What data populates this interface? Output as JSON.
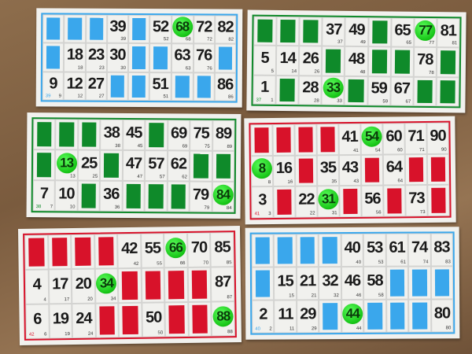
{
  "cards": [
    {
      "color": "#3aa7ec",
      "corner": "39",
      "rows": [
        [
          null,
          null,
          null,
          39,
          null,
          52,
          68,
          72,
          82
        ],
        [
          null,
          18,
          23,
          30,
          null,
          null,
          63,
          76,
          null
        ],
        [
          9,
          12,
          27,
          null,
          null,
          51,
          null,
          null,
          86
        ]
      ],
      "marked": [
        68
      ]
    },
    {
      "color": "#0f8a2a",
      "corner": "37",
      "rows": [
        [
          null,
          null,
          null,
          37,
          49,
          null,
          65,
          77,
          81
        ],
        [
          5,
          14,
          26,
          null,
          48,
          null,
          null,
          78,
          null
        ],
        [
          1,
          null,
          28,
          33,
          null,
          59,
          67,
          null,
          null
        ]
      ],
      "marked": [
        77,
        33
      ]
    },
    {
      "color": "#0f8a2a",
      "corner": "38",
      "rows": [
        [
          null,
          null,
          null,
          38,
          45,
          null,
          69,
          75,
          89
        ],
        [
          null,
          13,
          25,
          null,
          47,
          57,
          62,
          null,
          null
        ],
        [
          7,
          10,
          null,
          36,
          null,
          null,
          null,
          79,
          84
        ]
      ],
      "marked": [
        13,
        84
      ]
    },
    {
      "color": "#d8122a",
      "corner": "41",
      "rows": [
        [
          null,
          null,
          null,
          null,
          41,
          54,
          60,
          71,
          90
        ],
        [
          8,
          16,
          null,
          35,
          43,
          null,
          64,
          null,
          null
        ],
        [
          3,
          null,
          22,
          31,
          null,
          56,
          null,
          73,
          null
        ]
      ],
      "marked": [
        54,
        8,
        31
      ]
    },
    {
      "color": "#d8122a",
      "corner": "42",
      "rows": [
        [
          null,
          null,
          null,
          null,
          42,
          55,
          66,
          70,
          85
        ],
        [
          4,
          17,
          20,
          34,
          null,
          null,
          null,
          null,
          87
        ],
        [
          6,
          19,
          24,
          null,
          null,
          50,
          null,
          null,
          88
        ]
      ],
      "marked": [
        66,
        34,
        88
      ]
    },
    {
      "color": "#3aa7ec",
      "corner": "40",
      "rows": [
        [
          null,
          null,
          null,
          null,
          40,
          53,
          61,
          74,
          83
        ],
        [
          null,
          15,
          21,
          32,
          46,
          58,
          null,
          null,
          null
        ],
        [
          2,
          11,
          29,
          null,
          44,
          null,
          null,
          null,
          80
        ]
      ],
      "marked": [
        44
      ]
    }
  ]
}
